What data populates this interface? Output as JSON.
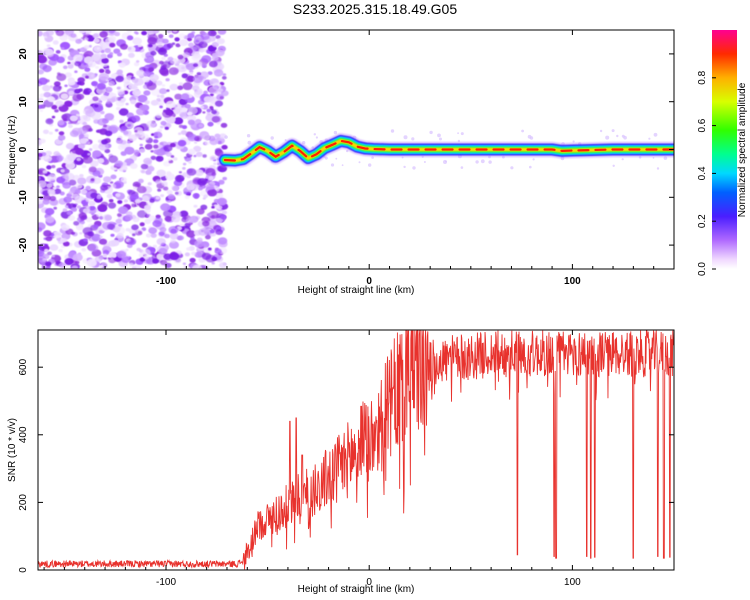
{
  "title": "S233.2025.315.18.49.G05",
  "colors": {
    "snr_line": "#e8322d",
    "noise_purple": "#8a2be2",
    "axis": "#000000",
    "background": "#ffffff"
  },
  "chart_data": [
    {
      "type": "heatmap",
      "name": "spectrogram",
      "xlabel": "Height of straight line (km)",
      "ylabel": "Frequency (Hz)",
      "xlim": [
        -163,
        150
      ],
      "ylim": [
        -25,
        25
      ],
      "xticks": [
        -100,
        0,
        100
      ],
      "yticks": [
        -20,
        -10,
        0,
        10,
        20
      ],
      "noise_region_x": [
        -163,
        -71
      ],
      "ridge": {
        "x": [
          -71,
          -66,
          -62,
          -58,
          -54,
          -50,
          -46,
          -42,
          -38,
          -34,
          -30,
          -26,
          -22,
          -18,
          -14,
          -10,
          -6,
          -2,
          2,
          10,
          20,
          40,
          60,
          80,
          90,
          95,
          100,
          110,
          120,
          130,
          140,
          150
        ],
        "y": [
          -2.2,
          -2.3,
          -2.0,
          -0.8,
          0.5,
          -0.3,
          -1.5,
          -0.5,
          0.8,
          -0.3,
          -1.8,
          -1.0,
          0.3,
          1.0,
          1.8,
          1.5,
          0.6,
          0.2,
          0.1,
          0.0,
          0.0,
          0.0,
          0.0,
          0.0,
          0.0,
          -0.3,
          -0.2,
          -0.1,
          0.0,
          0.0,
          0.0,
          0.0
        ]
      },
      "colorbar": {
        "label": "Normalized spectral amplitude",
        "range": [
          0,
          1
        ],
        "ticks": [
          "0.0",
          "0.2",
          "0.4",
          "0.6",
          "0.8"
        ],
        "tick_values": [
          0,
          0.2,
          0.4,
          0.6,
          0.8
        ]
      }
    },
    {
      "type": "line",
      "name": "snr",
      "xlabel": "Height of straight line (km)",
      "ylabel": "SNR (10 * v/v)",
      "xlim": [
        -163,
        150
      ],
      "ylim": [
        0,
        710
      ],
      "xticks": [
        -100,
        0,
        100
      ],
      "yticks": [
        0,
        200,
        400,
        600
      ],
      "series": [
        {
          "name": "SNR",
          "trend_x": [
            -163,
            -65,
            -61,
            -55,
            -50,
            -45,
            -40,
            -35,
            -30,
            -25,
            -20,
            -15,
            -10,
            -5,
            0,
            5,
            10,
            15,
            20,
            25,
            30,
            40,
            50,
            60,
            70,
            80,
            90,
            100,
            110,
            120,
            130,
            140,
            150
          ],
          "trend_y": [
            18,
            18,
            30,
            130,
            150,
            170,
            190,
            210,
            230,
            250,
            275,
            300,
            330,
            360,
            390,
            430,
            480,
            540,
            580,
            600,
            610,
            625,
            630,
            640,
            640,
            640,
            640,
            640,
            640,
            640,
            640,
            640,
            640
          ],
          "dropouts_x": [
            73,
            91,
            92,
            107,
            109,
            111,
            130,
            142,
            145,
            148
          ],
          "dropout_min": [
            45,
            40,
            35,
            40,
            35,
            38,
            35,
            40,
            35,
            38
          ],
          "spikes": [
            {
              "x": -39,
              "y": 440
            },
            {
              "x": -36,
              "y": 450
            },
            {
              "x": -33,
              "y": 340
            }
          ]
        }
      ]
    }
  ]
}
